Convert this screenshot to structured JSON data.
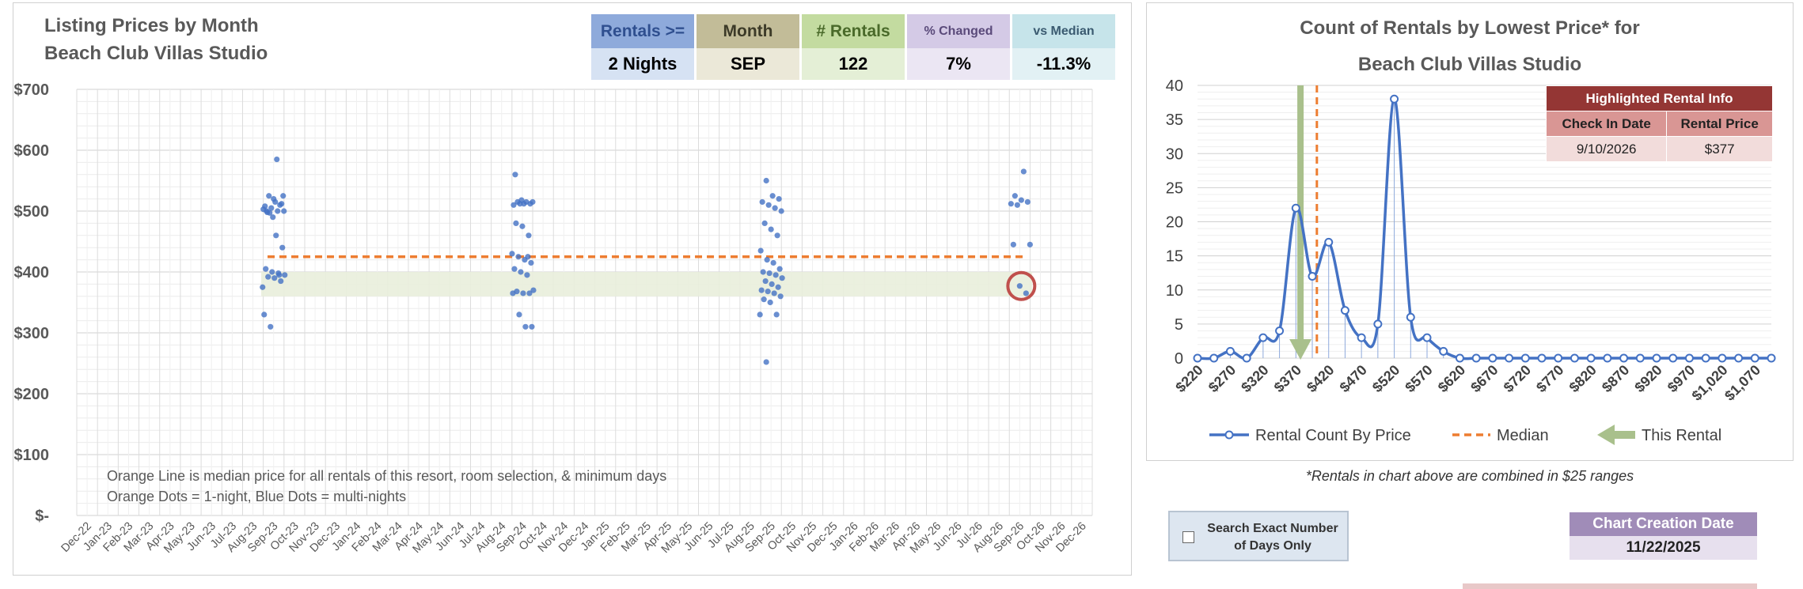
{
  "left_chart": {
    "title_line1": "Listing Prices by Month",
    "title_line2": "Beach Club Villas Studio",
    "header_table": [
      {
        "label": "Rentals >=",
        "value": "2 Nights",
        "head_color": "#8eaadb",
        "head_text": "#2f4f8f",
        "value_color": "#d6e2f3"
      },
      {
        "label": "Month",
        "value": "SEP",
        "head_color": "#c2bc98",
        "head_text": "#3c3a28",
        "value_color": "#ebe8d8"
      },
      {
        "label": "# Rentals",
        "value": "122",
        "head_color": "#c3dba0",
        "head_text": "#4a6a2a",
        "value_color": "#e4efd6"
      },
      {
        "label": "% Changed",
        "value": "7%",
        "head_color": "#d4cae6",
        "head_text": "#5a4a7a",
        "value_color": "#ebe6f3"
      },
      {
        "label": "vs Median",
        "value": "-11.3%",
        "head_color": "#c6e4ea",
        "head_text": "#3a5a70",
        "value_color": "#e2f1f4"
      }
    ],
    "notes": [
      "Orange Line is median price for all rentals of this resort, room selection, & minimum days",
      "Orange Dots = 1-night, Blue Dots = multi-nights"
    ]
  },
  "chart_data": [
    {
      "type": "scatter",
      "title": "Listing Prices by Month Beach Club Villas Studio",
      "y_tick_labels": [
        "$-",
        "$100",
        "$200",
        "$300",
        "$400",
        "$500",
        "$600",
        "$700"
      ],
      "ylim": [
        0,
        700
      ],
      "x_categories": [
        "Dec-22",
        "Jan-23",
        "Feb-23",
        "Mar-23",
        "Apr-23",
        "May-23",
        "Jun-23",
        "Jul-23",
        "Aug-23",
        "Sep-23",
        "Oct-23",
        "Nov-23",
        "Dec-23",
        "Jan-24",
        "Feb-24",
        "Mar-24",
        "Apr-24",
        "May-24",
        "Jun-24",
        "Jul-24",
        "Aug-24",
        "Sep-24",
        "Oct-24",
        "Nov-24",
        "Dec-24",
        "Jan-25",
        "Feb-25",
        "Mar-25",
        "Apr-25",
        "May-25",
        "Jun-25",
        "Jul-25",
        "Aug-25",
        "Sep-25",
        "Oct-25",
        "Nov-25",
        "Dec-25",
        "Jan-26",
        "Feb-26",
        "Mar-26",
        "Apr-26",
        "May-26",
        "Jun-26",
        "Jul-26",
        "Aug-26",
        "Sep-26",
        "Oct-26",
        "Nov-26",
        "Dec-26"
      ],
      "median_line": {
        "value": 425,
        "from": "Sep-23",
        "to": "Sep-26",
        "color": "#ed7d31"
      },
      "highlight_band": {
        "from": 360,
        "to": 400
      },
      "highlighted_point": {
        "x": "Sep-26",
        "y": 377
      },
      "series": [
        {
          "color": "#4472c4",
          "points": [
            [
              "Sep-23",
              525
            ],
            [
              "Sep-23",
              515
            ],
            [
              "Sep-23",
              512
            ],
            [
              "Sep-23",
              508
            ],
            [
              "Sep-23",
              505
            ],
            [
              "Sep-23",
              500
            ],
            [
              "Sep-23",
              500
            ],
            [
              "Sep-23",
              498
            ],
            [
              "Sep-23",
              520
            ],
            [
              "Sep-23",
              510
            ],
            [
              "Sep-23",
              503
            ],
            [
              "Sep-23",
              497
            ],
            [
              "Sep-23",
              460
            ],
            [
              "Sep-23",
              440
            ],
            [
              "Sep-23",
              405
            ],
            [
              "Sep-23",
              400
            ],
            [
              "Sep-23",
              398
            ],
            [
              "Sep-23",
              395
            ],
            [
              "Sep-23",
              392
            ],
            [
              "Sep-23",
              390
            ],
            [
              "Sep-23",
              385
            ],
            [
              "Sep-23",
              330
            ],
            [
              "Sep-23",
              310
            ],
            [
              "Sep-23",
              585
            ],
            [
              "Sep-23",
              525
            ],
            [
              "Sep-23",
              500
            ],
            [
              "Sep-23",
              490
            ],
            [
              "Sep-23",
              395
            ],
            [
              "Sep-23",
              375
            ],
            [
              "Sep-24",
              515
            ],
            [
              "Sep-24",
              512
            ],
            [
              "Sep-24",
              512
            ],
            [
              "Sep-24",
              510
            ],
            [
              "Sep-24",
              512
            ],
            [
              "Sep-24",
              515
            ],
            [
              "Sep-24",
              515
            ],
            [
              "Sep-24",
              480
            ],
            [
              "Sep-24",
              475
            ],
            [
              "Sep-24",
              460
            ],
            [
              "Sep-24",
              430
            ],
            [
              "Sep-24",
              425
            ],
            [
              "Sep-24",
              420
            ],
            [
              "Sep-24",
              415
            ],
            [
              "Sep-24",
              405
            ],
            [
              "Sep-24",
              400
            ],
            [
              "Sep-24",
              395
            ],
            [
              "Sep-24",
              370
            ],
            [
              "Sep-24",
              368
            ],
            [
              "Sep-24",
              365
            ],
            [
              "Sep-24",
              365
            ],
            [
              "Sep-24",
              365
            ],
            [
              "Sep-24",
              330
            ],
            [
              "Sep-24",
              310
            ],
            [
              "Sep-24",
              310
            ],
            [
              "Sep-24",
              560
            ],
            [
              "Sep-24",
              518
            ],
            [
              "Sep-24",
              425
            ],
            [
              "Sep-25",
              550
            ],
            [
              "Sep-25",
              525
            ],
            [
              "Sep-25",
              520
            ],
            [
              "Sep-25",
              515
            ],
            [
              "Sep-25",
              510
            ],
            [
              "Sep-25",
              505
            ],
            [
              "Sep-25",
              500
            ],
            [
              "Sep-25",
              480
            ],
            [
              "Sep-25",
              470
            ],
            [
              "Sep-25",
              460
            ],
            [
              "Sep-25",
              435
            ],
            [
              "Sep-25",
              420
            ],
            [
              "Sep-25",
              415
            ],
            [
              "Sep-25",
              405
            ],
            [
              "Sep-25",
              400
            ],
            [
              "Sep-25",
              398
            ],
            [
              "Sep-25",
              395
            ],
            [
              "Sep-25",
              390
            ],
            [
              "Sep-25",
              385
            ],
            [
              "Sep-25",
              380
            ],
            [
              "Sep-25",
              375
            ],
            [
              "Sep-25",
              370
            ],
            [
              "Sep-25",
              368
            ],
            [
              "Sep-25",
              365
            ],
            [
              "Sep-25",
              360
            ],
            [
              "Sep-25",
              355
            ],
            [
              "Sep-25",
              350
            ],
            [
              "Sep-25",
              330
            ],
            [
              "Sep-25",
              330
            ],
            [
              "Sep-25",
              252
            ],
            [
              "Sep-26",
              525
            ],
            [
              "Sep-26",
              518
            ],
            [
              "Sep-26",
              515
            ],
            [
              "Sep-26",
              512
            ],
            [
              "Sep-26",
              510
            ],
            [
              "Sep-26",
              565
            ],
            [
              "Sep-26",
              445
            ],
            [
              "Sep-26",
              445
            ],
            [
              "Sep-26",
              377
            ],
            [
              "Sep-26",
              365
            ]
          ]
        }
      ]
    },
    {
      "type": "line",
      "title_line1": "Count of Rentals by Lowest Price* for",
      "title_line2": "Beach Club Villas Studio",
      "ylim": [
        0,
        40
      ],
      "y_ticks": [
        0,
        5,
        10,
        15,
        20,
        25,
        30,
        35,
        40
      ],
      "x_tick_labels": [
        "$220",
        "$270",
        "$320",
        "$370",
        "$420",
        "$470",
        "$520",
        "$570",
        "$620",
        "$670",
        "$720",
        "$770",
        "$820",
        "$870",
        "$920",
        "$970",
        "$1,020",
        "$1,070"
      ],
      "x": [
        220,
        245,
        270,
        295,
        320,
        345,
        370,
        395,
        420,
        445,
        470,
        495,
        520,
        545,
        570,
        595,
        620,
        645,
        670,
        695,
        720,
        745,
        770,
        795,
        820,
        845,
        870,
        895,
        920,
        945,
        970,
        995,
        1020,
        1045,
        1070,
        1095
      ],
      "series": [
        {
          "name": "Rental Count By Price",
          "color": "#4472c4",
          "values": [
            0,
            0,
            1,
            0,
            3,
            4,
            22,
            12,
            17,
            7,
            3,
            5,
            38,
            6,
            3,
            1,
            0,
            0,
            0,
            0,
            0,
            0,
            0,
            0,
            0,
            0,
            0,
            0,
            0,
            0,
            0,
            0,
            0,
            0,
            0,
            0
          ]
        }
      ],
      "median_x": 402,
      "this_rental_x": 377,
      "legend": [
        {
          "label": "Rental Count By Price",
          "color": "#4472c4"
        },
        {
          "label": "Median",
          "color": "#ed7d31"
        },
        {
          "label": "This Rental",
          "color": "#a9c08c"
        }
      ],
      "legend_position": "bottom"
    }
  ],
  "highlight_info": {
    "title": "Highlighted Rental Info",
    "col1_header": "Check In Date",
    "col2_header": "Rental Price",
    "check_in": "9/10/2026",
    "price": "$377"
  },
  "footnote": "*Rentals in chart above are combined in $25 ranges",
  "search_option": {
    "label_line1": "Search Exact Number",
    "label_line2": "of Days Only",
    "checked": false
  },
  "creation": {
    "label": "Chart Creation Date",
    "date": "11/22/2025"
  }
}
